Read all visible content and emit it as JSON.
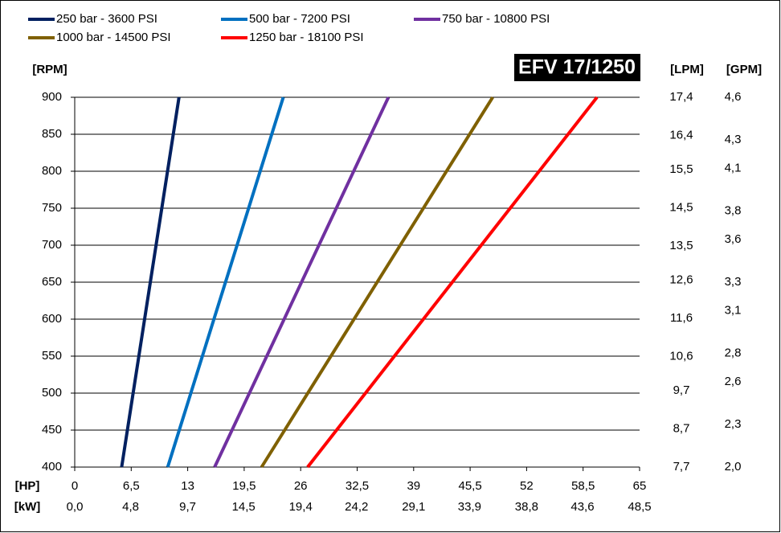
{
  "chart_data": {
    "type": "line",
    "title": "EFV 17/1250",
    "xlabel": "[HP]",
    "x2label": "[kW]",
    "ylabel": "[RPM]",
    "y2label": "[LPM]",
    "y3label": "[GPM]",
    "xlim": [
      0,
      65
    ],
    "xticks": [
      0,
      {
        "value": 6.5,
        "label": "6,5"
      },
      13,
      {
        "value": 19.5,
        "label": "19,5"
      },
      26,
      {
        "value": 32.5,
        "label": "32,5"
      },
      39,
      {
        "value": 45.5,
        "label": "45,5"
      },
      52,
      {
        "value": 58.5,
        "label": "58,5"
      },
      65
    ],
    "x2lim": [
      0,
      48.5
    ],
    "x2ticks": [
      {
        "value": 0,
        "label": "0,0"
      },
      {
        "value": 4.8,
        "label": "4,8"
      },
      {
        "value": 9.7,
        "label": "9,7"
      },
      {
        "value": 14.5,
        "label": "14,5"
      },
      {
        "value": 19.4,
        "label": "19,4"
      },
      {
        "value": 24.2,
        "label": "24,2"
      },
      {
        "value": 29.1,
        "label": "29,1"
      },
      {
        "value": 33.9,
        "label": "33,9"
      },
      {
        "value": 38.8,
        "label": "38,8"
      },
      {
        "value": 43.6,
        "label": "43,6"
      },
      {
        "value": 48.5,
        "label": "48,5"
      }
    ],
    "ylim": [
      400,
      900
    ],
    "yticks": [
      400,
      450,
      500,
      550,
      600,
      650,
      700,
      750,
      800,
      850,
      900
    ],
    "y2lim": [
      7.7,
      17.4
    ],
    "y2ticks": [
      {
        "value": 7.7,
        "label": "7,7"
      },
      {
        "value": 8.7,
        "label": "8,7"
      },
      {
        "value": 9.7,
        "label": "9,7"
      },
      {
        "value": 10.6,
        "label": "10,6"
      },
      {
        "value": 11.6,
        "label": "11,6"
      },
      {
        "value": 12.6,
        "label": "12,6"
      },
      {
        "value": 13.5,
        "label": "13,5"
      },
      {
        "value": 14.5,
        "label": "14,5"
      },
      {
        "value": 15.5,
        "label": "15,5"
      },
      {
        "value": 16.4,
        "label": "16,4"
      },
      {
        "value": 17.4,
        "label": "17,4"
      }
    ],
    "y3lim": [
      2.0,
      4.6
    ],
    "y3ticks": [
      {
        "value": 2.0,
        "label": "2,0"
      },
      {
        "value": 2.3,
        "label": "2,3"
      },
      {
        "value": 2.6,
        "label": "2,6"
      },
      {
        "value": 2.8,
        "label": "2,8"
      },
      {
        "value": 3.1,
        "label": "3,1"
      },
      {
        "value": 3.3,
        "label": "3,3"
      },
      {
        "value": 3.6,
        "label": "3,6"
      },
      {
        "value": 3.8,
        "label": "3,8"
      },
      {
        "value": 4.1,
        "label": "4,1"
      },
      {
        "value": 4.3,
        "label": "4,3"
      },
      {
        "value": 4.6,
        "label": "4,6"
      }
    ],
    "grid": true,
    "series": [
      {
        "name": "250 bar - 3600 PSI",
        "color": "#002060",
        "x": [
          5.4,
          12.0
        ],
        "values": [
          400,
          900
        ]
      },
      {
        "name": "500 bar - 7200 PSI",
        "color": "#0070c0",
        "x": [
          10.7,
          24.0
        ],
        "values": [
          400,
          900
        ]
      },
      {
        "name": "750 bar - 10800 PSI",
        "color": "#7030a0",
        "x": [
          16.1,
          36.1
        ],
        "values": [
          400,
          900
        ]
      },
      {
        "name": "1000 bar - 14500 PSI",
        "color": "#7f6000",
        "x": [
          21.5,
          48.1
        ],
        "values": [
          400,
          900
        ]
      },
      {
        "name": "1250 bar - 18100 PSI",
        "color": "#ff0000",
        "x": [
          26.8,
          60.1
        ],
        "values": [
          400,
          900
        ]
      }
    ]
  }
}
